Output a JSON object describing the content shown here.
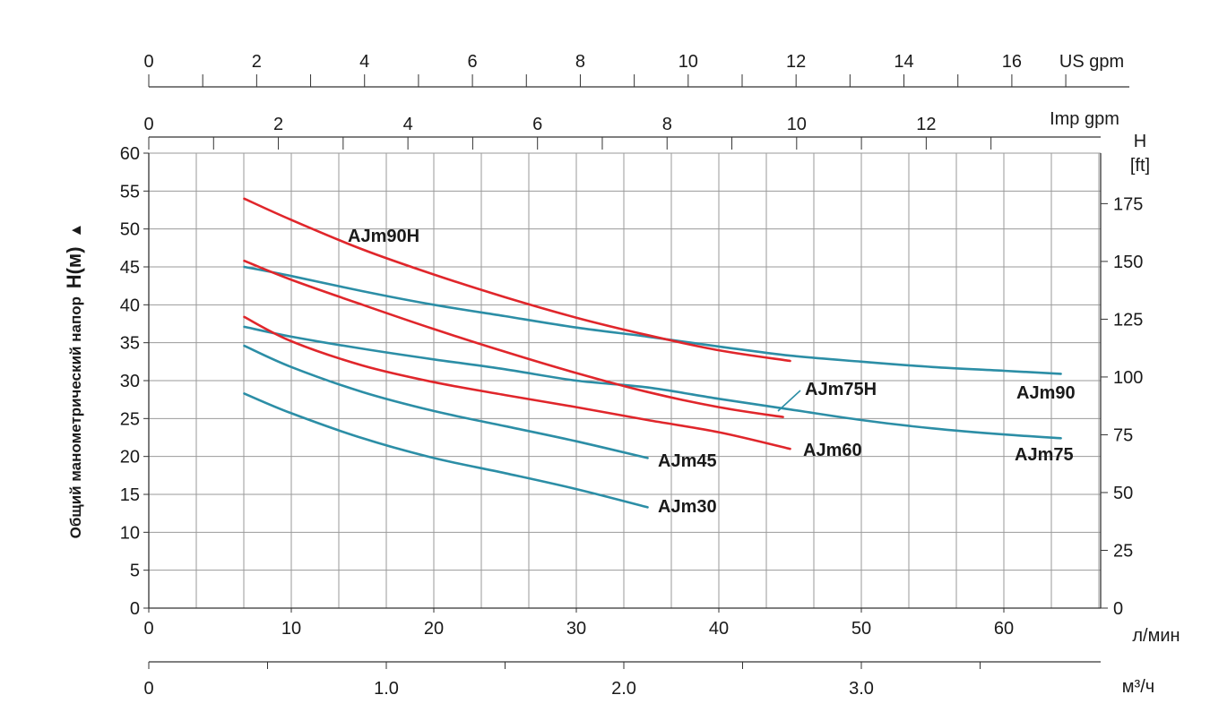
{
  "chart_data": {
    "type": "line",
    "title": "",
    "ylabel": "Общий манометрический напор",
    "ylabel_symbol": "H(м)",
    "ylabel_arrow": "▲",
    "xlabel": "л/мин",
    "xlim": [
      0,
      66
    ],
    "ylim": [
      0,
      60
    ],
    "x_ticks": [
      0,
      10,
      20,
      30,
      40,
      50,
      60
    ],
    "y_ticks": [
      0,
      5,
      10,
      15,
      20,
      25,
      30,
      35,
      40,
      45,
      50,
      55,
      60
    ],
    "grid": true,
    "right_axis": {
      "label_line1": "H",
      "label_line2": "[ft]",
      "ticks": [
        0,
        25,
        50,
        75,
        100,
        125,
        150,
        175
      ],
      "feet_per_meter": 3.2808
    },
    "m3h_axis": {
      "label": "м³/ч",
      "ticks": [
        0,
        0.5,
        1.0,
        1.5,
        2.0,
        2.5,
        3.0,
        3.5
      ],
      "labels": [
        "0",
        "",
        "1.0",
        "",
        "2.0",
        "",
        "3.0",
        ""
      ]
    },
    "imp_gpm_axis": {
      "label": "Imp gpm",
      "ticks": [
        0,
        1,
        2,
        3,
        4,
        5,
        6,
        7,
        8,
        9,
        10,
        11,
        12,
        13
      ],
      "labels": [
        "0",
        "",
        "2",
        "",
        "4",
        "",
        "6",
        "",
        "8",
        "",
        "10",
        "",
        "12",
        ""
      ]
    },
    "us_gpm_axis": {
      "label": "US gpm",
      "ticks": [
        0,
        1,
        2,
        3,
        4,
        5,
        6,
        7,
        8,
        9,
        10,
        11,
        12,
        13,
        14,
        15,
        16,
        17
      ],
      "labels": [
        "0",
        "",
        "2",
        "",
        "4",
        "",
        "6",
        "",
        "8",
        "",
        "10",
        "",
        "12",
        "",
        "14",
        "",
        "16",
        ""
      ]
    },
    "series": [
      {
        "name": "AJm90H",
        "color": "#e0262b",
        "x": [
          6.7,
          10,
          15,
          20,
          25,
          30,
          35,
          40,
          45
        ],
        "y": [
          54,
          51.2,
          47.3,
          44,
          41,
          38.3,
          36,
          34,
          32.6
        ]
      },
      {
        "name": "AJm75H",
        "color": "#e0262b",
        "x": [
          6.7,
          10,
          15,
          20,
          25,
          30,
          35,
          40,
          44.5
        ],
        "y": [
          45.8,
          43.3,
          40,
          36.8,
          33.8,
          31,
          28.5,
          26.5,
          25.2
        ]
      },
      {
        "name": "AJm60",
        "color": "#e0262b",
        "x": [
          6.7,
          10,
          15,
          20,
          25,
          30,
          35,
          40,
          45
        ],
        "y": [
          38.4,
          35.2,
          32,
          29.8,
          28.1,
          26.5,
          24.8,
          23.2,
          21
        ]
      },
      {
        "name": "AJm90",
        "color": "#2c8ea6",
        "x": [
          6.7,
          10,
          15,
          20,
          25,
          30,
          35,
          40,
          45,
          50,
          55,
          60,
          64
        ],
        "y": [
          45,
          43.8,
          41.8,
          40,
          38.5,
          37,
          35.8,
          34.5,
          33.3,
          32.5,
          31.8,
          31.3,
          30.9
        ]
      },
      {
        "name": "AJm75",
        "color": "#2c8ea6",
        "x": [
          6.7,
          10,
          15,
          20,
          25,
          30,
          35,
          40,
          45,
          50,
          55,
          60,
          64
        ],
        "y": [
          37.1,
          35.8,
          34.2,
          32.8,
          31.5,
          30,
          29.1,
          27.6,
          26.2,
          24.8,
          23.7,
          22.9,
          22.4
        ]
      },
      {
        "name": "AJm45",
        "color": "#2c8ea6",
        "x": [
          6.7,
          10,
          15,
          20,
          25,
          30,
          35
        ],
        "y": [
          34.6,
          31.8,
          28.5,
          26,
          24,
          22,
          19.8
        ]
      },
      {
        "name": "AJm30",
        "color": "#2c8ea6",
        "x": [
          6.7,
          10,
          15,
          20,
          25,
          30,
          35
        ],
        "y": [
          28.3,
          25.7,
          22.4,
          19.8,
          17.8,
          15.7,
          13.3
        ]
      }
    ],
    "annotations": [
      "AJm90H",
      "AJm75H",
      "AJm60",
      "AJm90",
      "AJm75",
      "AJm45",
      "AJm30"
    ]
  }
}
